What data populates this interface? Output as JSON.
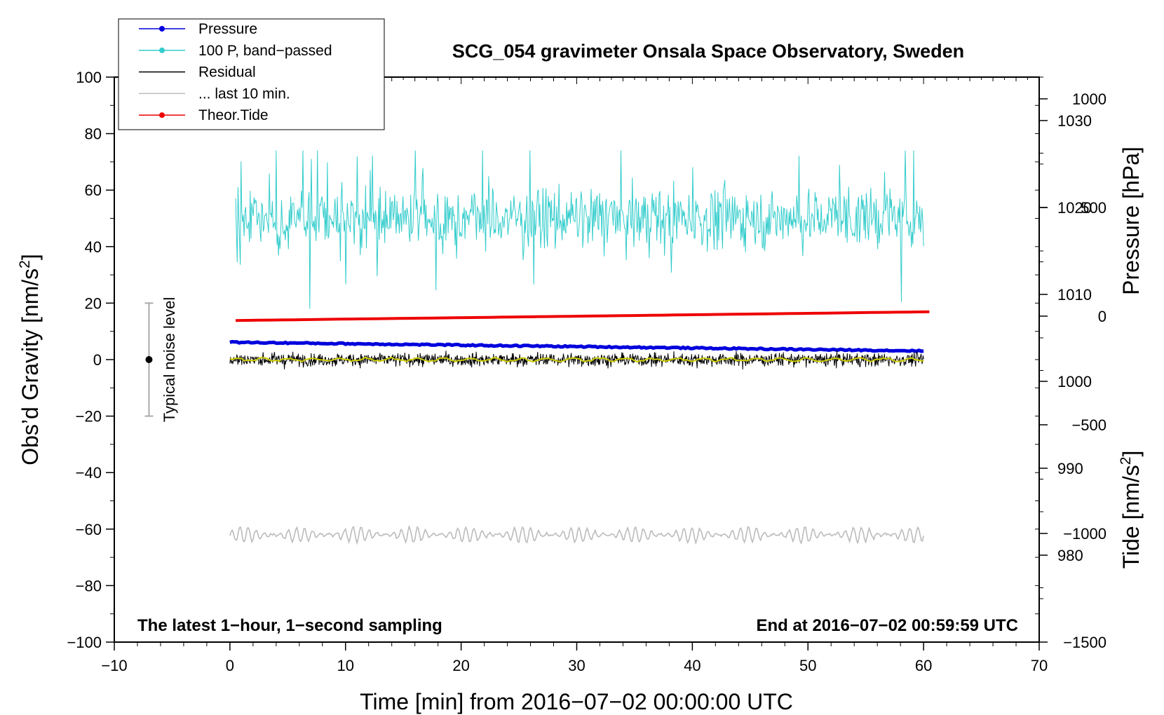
{
  "chart_data": {
    "type": "line",
    "title": "SCG_054 gravimeter Onsala Space Observatory, Sweden",
    "xlabel": "Time [min] from 2016−07−02 00:00:00 UTC",
    "ylabel_left": "Obs’d Gravity [nm/s",
    "ylabel_left_sup": "2",
    "ylabel_left_close": "]",
    "ylabel_right_pressure": "Pressure [hPa]",
    "ylabel_right_tide": "Tide [nm/s",
    "ylabel_right_tide_sup": "2",
    "ylabel_right_tide_close": "]",
    "xlim": [
      -10,
      70
    ],
    "ylim_left": [
      -100,
      100
    ],
    "pressure_axis_range": [
      970,
      1035
    ],
    "tide_axis_range": [
      -1500,
      1100
    ],
    "x_ticks": [
      "−10",
      "0",
      "10",
      "20",
      "30",
      "40",
      "50",
      "60",
      "70"
    ],
    "y_left_ticks": [
      "100",
      "80",
      "60",
      "40",
      "20",
      "0",
      "−20",
      "−40",
      "−60",
      "−80",
      "−100"
    ],
    "y_pressure_ticks": [
      "1030",
      "1020",
      "1010",
      "1000",
      "990",
      "980"
    ],
    "y_tide_ticks": [
      "1000",
      "500",
      "0",
      "−500",
      "−1000",
      "−1500"
    ],
    "annotation_left": "The latest 1−hour, 1−second sampling",
    "annotation_right": "End at 2016−07−02 00:59:59 UTC",
    "noise_label": "Typical noise level",
    "noise_bar": {
      "x": -7,
      "center": 0,
      "half_range": 20
    },
    "legend": [
      {
        "label": "Pressure",
        "color": "#0000dd",
        "marker": true
      },
      {
        "label": "100 P, band−passed",
        "color": "#33cccc",
        "marker": true
      },
      {
        "label": "Residual",
        "color": "#000000",
        "marker": false
      },
      {
        "label": "... last 10 min.",
        "color": "#bbbbbb",
        "marker": false
      },
      {
        "label": "Theor.Tide",
        "color": "#ee0000",
        "marker": true
      }
    ],
    "series": [
      {
        "name": "Pressure",
        "axis": "pressure",
        "color": "#0000dd",
        "x_range": [
          0,
          60
        ],
        "start": 1004.5,
        "end": 1003.5,
        "note": "steady, slowly decreasing"
      },
      {
        "name": "100 P, band−passed",
        "axis": "left",
        "color": "#33cccc",
        "x_range": [
          0.5,
          60
        ],
        "center": 50,
        "typical_amplitude": 10,
        "max": 74,
        "min": 10
      },
      {
        "name": "Residual",
        "axis": "left",
        "color": "#000000",
        "x_range": [
          0,
          60
        ],
        "center": 0,
        "typical_amplitude": 3,
        "max": 5.5,
        "min": -6
      },
      {
        "name": "Residual smoothed",
        "axis": "left",
        "color": "#cccc00",
        "x_range": [
          0,
          60
        ],
        "center": 0
      },
      {
        "name": "Theor.Tide",
        "axis": "tide",
        "color": "#ee0000",
        "x_range": [
          0.5,
          60.5
        ],
        "start": -20,
        "end": 20
      },
      {
        "name": "... last 10 min.",
        "axis": "left",
        "color": "#bbbbbb",
        "x_range": [
          0,
          60
        ],
        "center": -62,
        "typical_amplitude": 2.5
      }
    ]
  }
}
